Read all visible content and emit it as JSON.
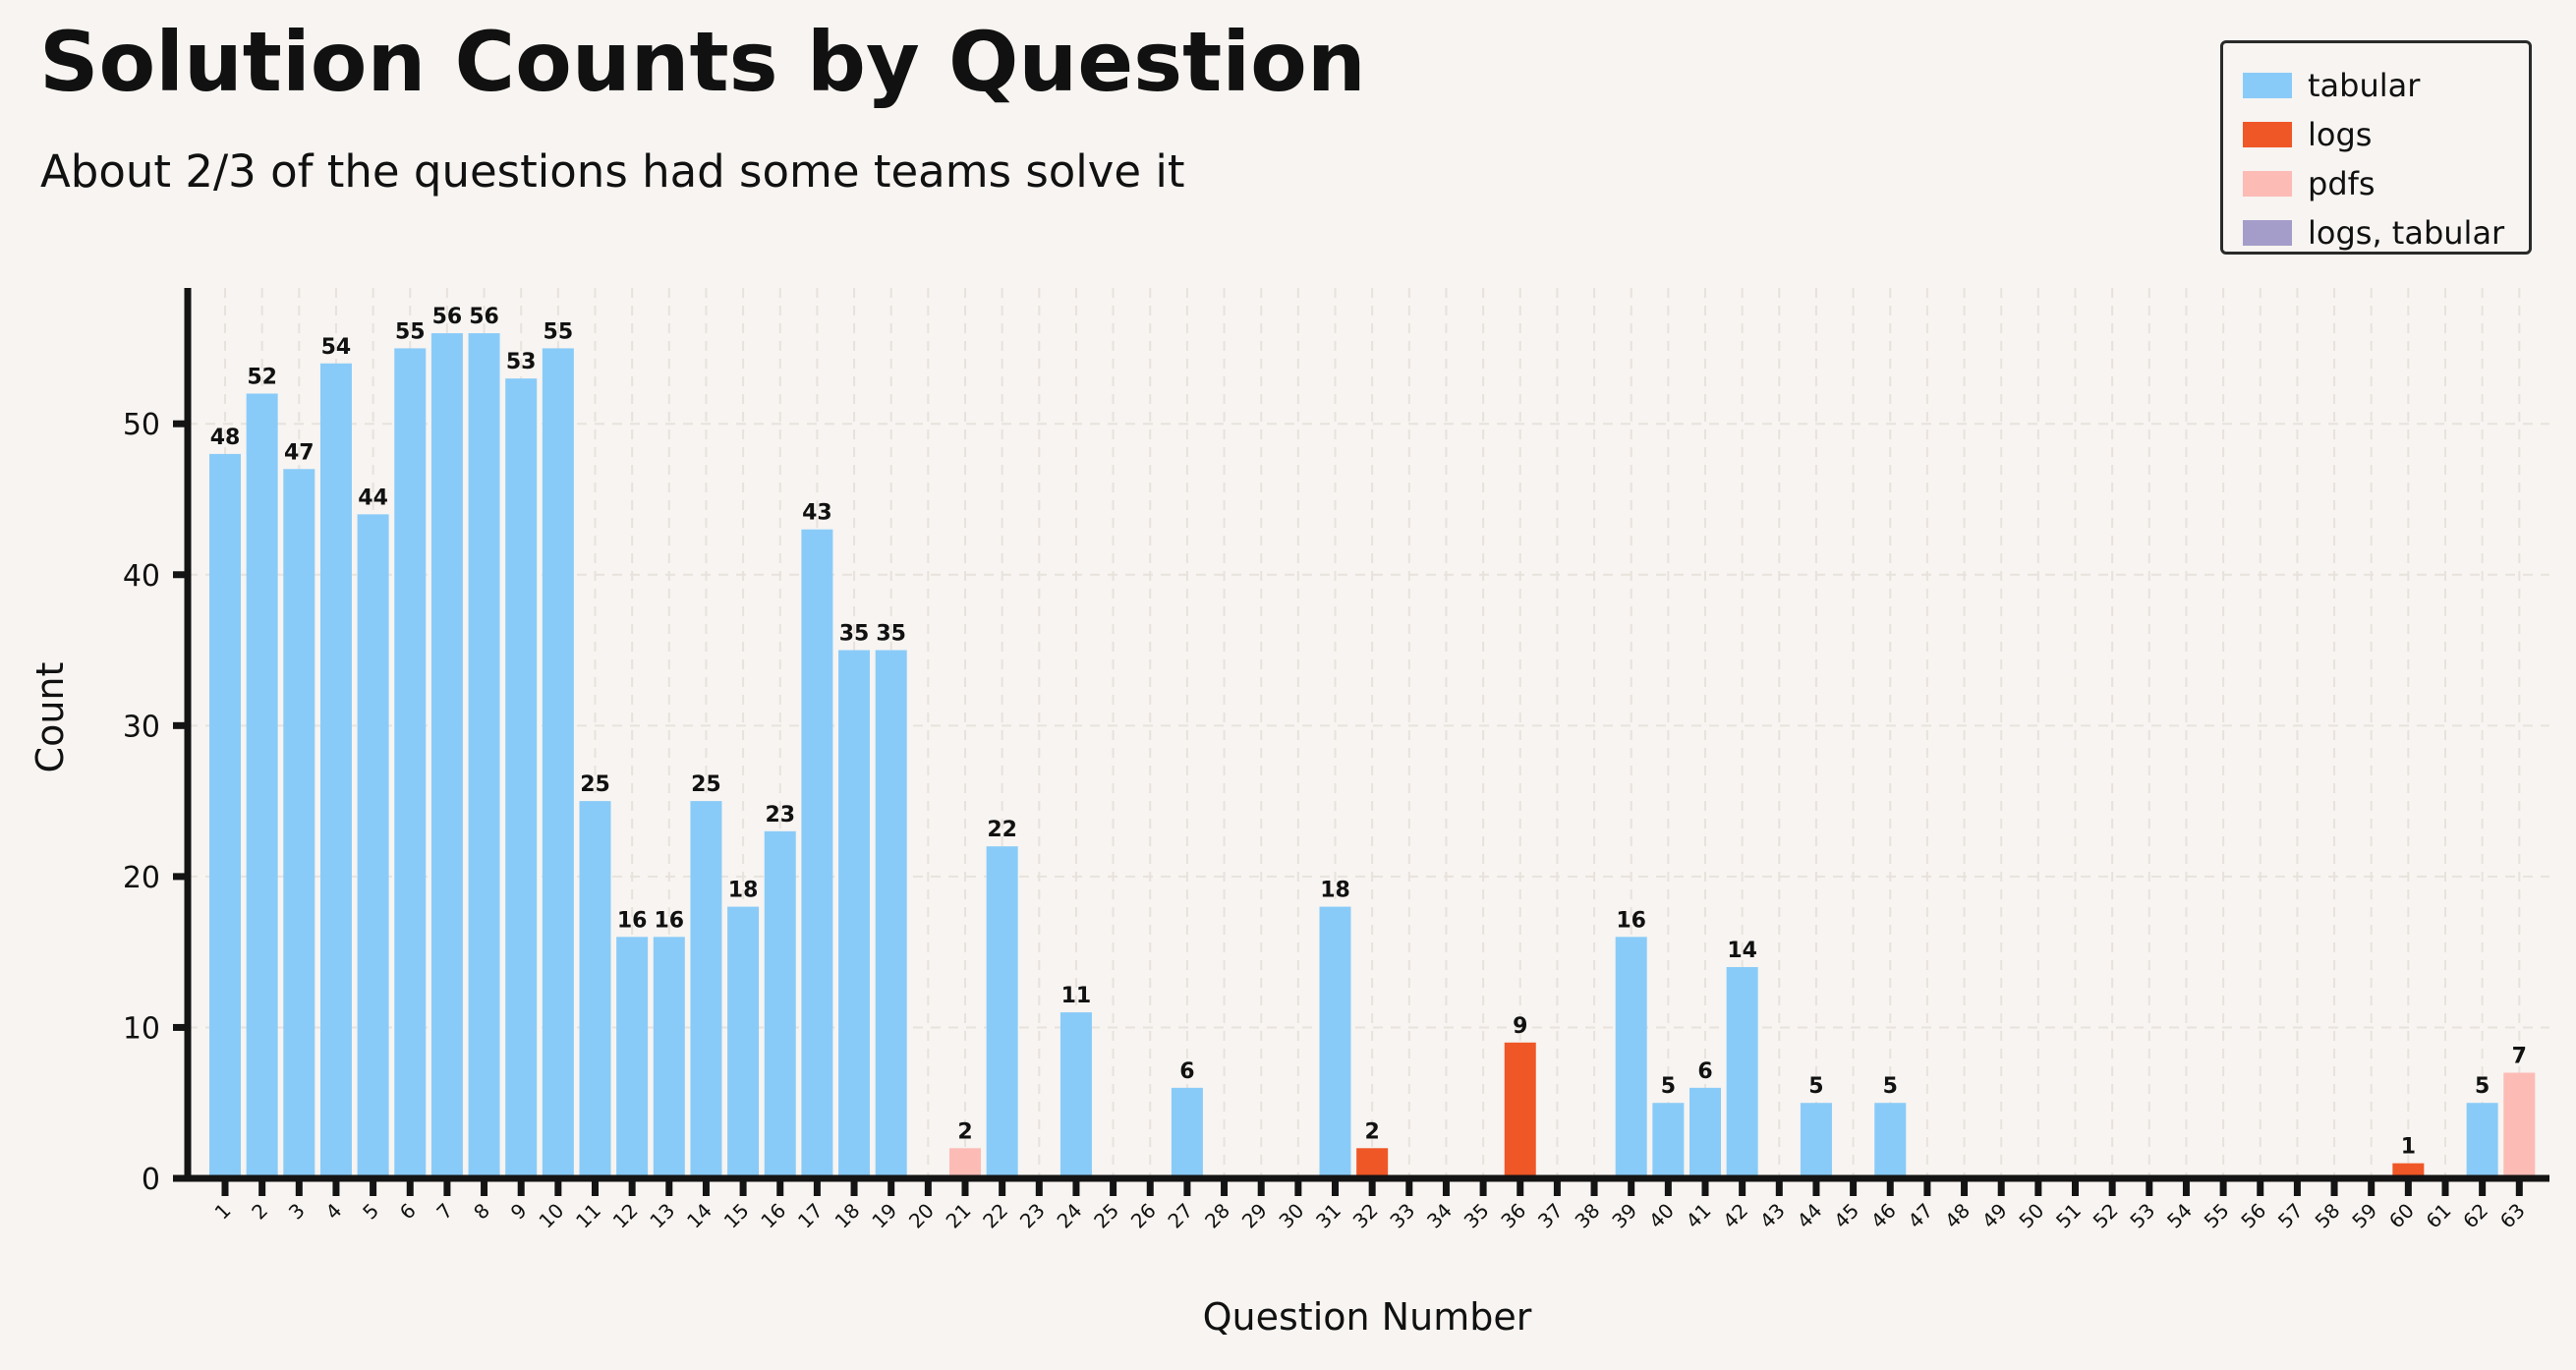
{
  "title": "Solution Counts by Question",
  "subtitle": "About 2/3 of the questions had some teams solve it",
  "legend": [
    {
      "label": "tabular",
      "color": "#89cbf8"
    },
    {
      "label": "logs",
      "color": "#ef5727"
    },
    {
      "label": "pdfs",
      "color": "#fdbbb6"
    },
    {
      "label": "logs, tabular",
      "color": "#a59dc9"
    }
  ],
  "chart_data": {
    "type": "bar",
    "title": "Solution Counts by Question",
    "subtitle": "About 2/3 of the questions had some teams solve it",
    "xlabel": "Question Number",
    "ylabel": "Count",
    "ylim": [
      0,
      59
    ],
    "yticks": [
      0,
      10,
      20,
      30,
      40,
      50
    ],
    "grid": true,
    "legend_position": "top-right",
    "categories": [
      "1",
      "2",
      "3",
      "4",
      "5",
      "6",
      "7",
      "8",
      "9",
      "10",
      "11",
      "12",
      "13",
      "14",
      "15",
      "16",
      "17",
      "18",
      "19",
      "20",
      "21",
      "22",
      "23",
      "24",
      "25",
      "26",
      "27",
      "28",
      "29",
      "30",
      "31",
      "32",
      "33",
      "34",
      "35",
      "36",
      "37",
      "38",
      "39",
      "40",
      "41",
      "42",
      "43",
      "44",
      "45",
      "46",
      "47",
      "48",
      "49",
      "50",
      "51",
      "52",
      "53",
      "54",
      "55",
      "56",
      "57",
      "58",
      "59",
      "60",
      "61",
      "62",
      "63"
    ],
    "values": [
      48,
      52,
      47,
      54,
      44,
      55,
      56,
      56,
      53,
      55,
      25,
      16,
      16,
      25,
      18,
      23,
      43,
      35,
      35,
      0,
      2,
      22,
      0,
      11,
      0,
      0,
      6,
      0,
      0,
      0,
      18,
      2,
      0,
      0,
      0,
      9,
      0,
      0,
      16,
      5,
      6,
      14,
      0,
      5,
      0,
      5,
      0,
      0,
      0,
      0,
      0,
      0,
      0,
      0,
      0,
      0,
      0,
      0,
      0,
      1,
      0,
      5,
      7
    ],
    "series_type": [
      "tabular",
      "tabular",
      "tabular",
      "tabular",
      "tabular",
      "tabular",
      "tabular",
      "tabular",
      "tabular",
      "tabular",
      "tabular",
      "tabular",
      "tabular",
      "tabular",
      "tabular",
      "tabular",
      "tabular",
      "tabular",
      "tabular",
      "tabular",
      "pdfs",
      "tabular",
      "tabular",
      "tabular",
      "tabular",
      "tabular",
      "tabular",
      "tabular",
      "tabular",
      "tabular",
      "tabular",
      "logs",
      "tabular",
      "tabular",
      "tabular",
      "logs",
      "tabular",
      "tabular",
      "tabular",
      "tabular",
      "tabular",
      "tabular",
      "tabular",
      "tabular",
      "tabular",
      "tabular",
      "tabular",
      "tabular",
      "tabular",
      "tabular",
      "tabular",
      "tabular",
      "tabular",
      "tabular",
      "tabular",
      "tabular",
      "tabular",
      "tabular",
      "tabular",
      "logs",
      "tabular",
      "tabular",
      "pdfs"
    ],
    "colors": {
      "tabular": "#89cbf8",
      "logs": "#ef5727",
      "pdfs": "#fdbbb6",
      "logs, tabular": "#a59dc9"
    }
  }
}
